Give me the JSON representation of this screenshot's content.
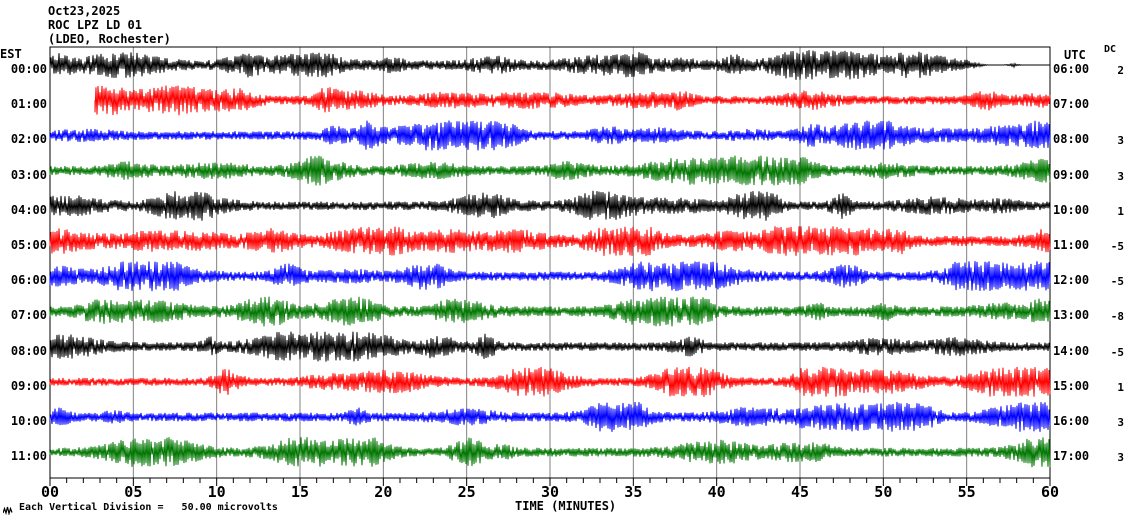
{
  "chart_data": {
    "type": "line",
    "subtype": "seismogram-helicorder",
    "header": {
      "date": "Oct23,2025",
      "station": "ROC LPZ LD 01",
      "source": "(LDEO, Rochester)"
    },
    "left_axis": {
      "label": "EST"
    },
    "right_axis": {
      "label": "UTC"
    },
    "dc_column": {
      "label": "DC"
    },
    "x_axis": {
      "label": "TIME (MINUTES)",
      "range_minutes": [
        0,
        60
      ],
      "major_tick_every_minutes": 5,
      "minor_tick_every_minutes": 1,
      "tick_labels": [
        "00",
        "05",
        "10",
        "15",
        "20",
        "25",
        "30",
        "35",
        "40",
        "45",
        "50",
        "55",
        "60"
      ]
    },
    "footer": {
      "scale_text": "Each Vertical Division =   50.00 microvolts",
      "marker_icon": "waveform-scale-marker"
    },
    "style": {
      "background": "#ffffff",
      "frame_color": "#000000",
      "grid_color": "#808080",
      "trace_colors": {
        "black": "#000000",
        "red": "#ff0000",
        "blue": "#0000ff",
        "green": "#007700"
      }
    },
    "rows": [
      {
        "est": "00:00",
        "utc": "06:00",
        "color": "black",
        "dc": "2",
        "start_min": 0,
        "end_min": 60,
        "seed": 11,
        "base_amp": 4.6,
        "bursts": 15,
        "burst_amp": 9,
        "start_burst": true,
        "fade_end": true,
        "end_burst": false
      },
      {
        "est": "01:00",
        "utc": "07:00",
        "color": "red",
        "dc": "",
        "start_min": 2.7,
        "end_min": 60,
        "seed": 22,
        "base_amp": 4.2,
        "bursts": 15,
        "burst_amp": 9,
        "start_burst": true,
        "fade_end": false,
        "end_burst": false
      },
      {
        "est": "02:00",
        "utc": "08:00",
        "color": "blue",
        "dc": "3",
        "start_min": 0,
        "end_min": 60,
        "seed": 33,
        "base_amp": 4.3,
        "bursts": 16,
        "burst_amp": 9,
        "start_burst": false,
        "fade_end": false,
        "end_burst": true
      },
      {
        "est": "03:00",
        "utc": "09:00",
        "color": "green",
        "dc": "3",
        "start_min": 0,
        "end_min": 60,
        "seed": 44,
        "base_amp": 4.6,
        "bursts": 15,
        "burst_amp": 9,
        "start_burst": false,
        "fade_end": false,
        "end_burst": false
      },
      {
        "est": "04:00",
        "utc": "10:00",
        "color": "black",
        "dc": "1",
        "start_min": 0,
        "end_min": 60,
        "seed": 55,
        "base_amp": 4.2,
        "bursts": 14,
        "burst_amp": 10,
        "start_burst": false,
        "fade_end": false,
        "end_burst": false
      },
      {
        "est": "05:00",
        "utc": "11:00",
        "color": "red",
        "dc": "-5",
        "start_min": 0,
        "end_min": 60,
        "seed": 66,
        "base_amp": 5.2,
        "bursts": 18,
        "burst_amp": 12,
        "start_burst": false,
        "fade_end": false,
        "end_burst": true
      },
      {
        "est": "06:00",
        "utc": "12:00",
        "color": "blue",
        "dc": "-5",
        "start_min": 0,
        "end_min": 60,
        "seed": 77,
        "base_amp": 4.5,
        "bursts": 16,
        "burst_amp": 10,
        "start_burst": false,
        "fade_end": false,
        "end_burst": true
      },
      {
        "est": "07:00",
        "utc": "13:00",
        "color": "green",
        "dc": "-8",
        "start_min": 0,
        "end_min": 60,
        "seed": 88,
        "base_amp": 5.0,
        "bursts": 16,
        "burst_amp": 9,
        "start_burst": false,
        "fade_end": false,
        "end_burst": true
      },
      {
        "est": "08:00",
        "utc": "14:00",
        "color": "black",
        "dc": "-5",
        "start_min": 0,
        "end_min": 60,
        "seed": 99,
        "base_amp": 4.3,
        "bursts": 15,
        "burst_amp": 10,
        "start_burst": false,
        "fade_end": false,
        "end_burst": false
      },
      {
        "est": "09:00",
        "utc": "15:00",
        "color": "red",
        "dc": "1",
        "start_min": 0,
        "end_min": 60,
        "seed": 111,
        "base_amp": 4.0,
        "bursts": 16,
        "burst_amp": 10,
        "start_burst": false,
        "fade_end": false,
        "end_burst": true
      },
      {
        "est": "10:00",
        "utc": "16:00",
        "color": "blue",
        "dc": "3",
        "start_min": 0,
        "end_min": 60,
        "seed": 122,
        "base_amp": 4.4,
        "bursts": 16,
        "burst_amp": 10,
        "start_burst": false,
        "fade_end": false,
        "end_burst": true
      },
      {
        "est": "11:00",
        "utc": "17:00",
        "color": "green",
        "dc": "3",
        "start_min": 0,
        "end_min": 60,
        "seed": 133,
        "base_amp": 4.4,
        "bursts": 15,
        "burst_amp": 10,
        "start_burst": false,
        "fade_end": false,
        "end_burst": true
      }
    ]
  }
}
